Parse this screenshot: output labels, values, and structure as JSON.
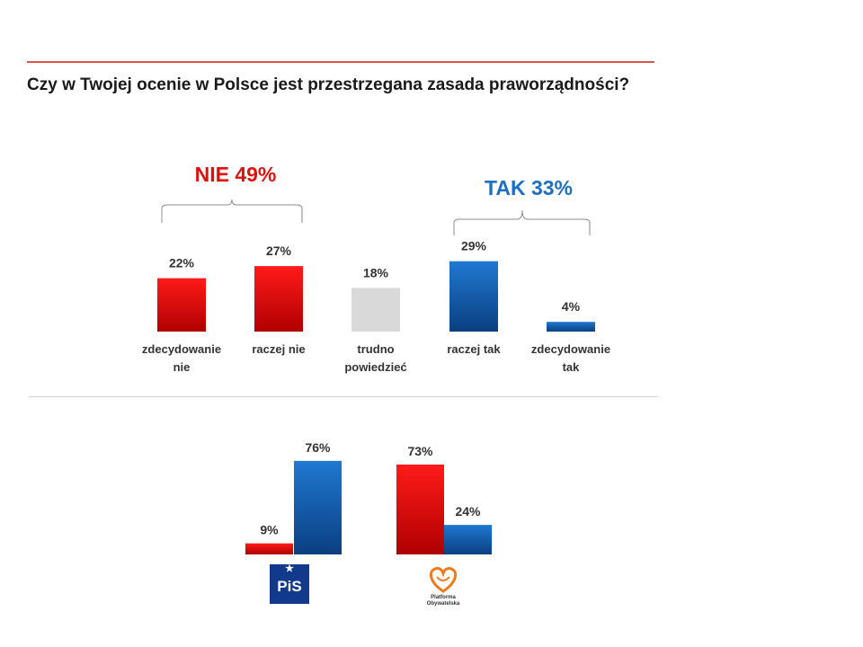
{
  "title": "Czy w Twojej ocenie w Polsce jest przestrzegana zasada praworządności?",
  "colors": {
    "red": "#e10000",
    "blue": "#1464c0",
    "gray": "#d9d9d9",
    "nie_text": "#e01010",
    "tak_text": "#1f6fc0",
    "rule": "#d9534f"
  },
  "chart_data": [
    {
      "type": "bar",
      "categories": [
        "zdecydowanie nie",
        "raczej nie",
        "trudno powiedzieć",
        "raczej tak",
        "zdecydowanie tak"
      ],
      "values": [
        22,
        27,
        18,
        29,
        4
      ],
      "labels": [
        "22%",
        "27%",
        "18%",
        "29%",
        "4%"
      ],
      "groups": [
        {
          "label": "NIE 49%",
          "members": [
            "zdecydowanie nie",
            "raczej nie"
          ]
        },
        {
          "label": "TAK 33%",
          "members": [
            "raczej tak",
            "zdecydowanie tak"
          ]
        }
      ],
      "title": "Czy w Twojej ocenie w Polsce jest przestrzegana zasada praworządności?"
    },
    {
      "type": "bar",
      "categories": [
        "PiS",
        "Platforma Obywatelska"
      ],
      "series": [
        {
          "name": "NIE",
          "values": [
            9,
            73
          ],
          "labels": [
            "9%",
            "73%"
          ]
        },
        {
          "name": "TAK",
          "values": [
            76,
            24
          ],
          "labels": [
            "76%",
            "24%"
          ]
        }
      ]
    }
  ],
  "logos": {
    "pis": "PiS",
    "po_line1": "Platforma",
    "po_line2": "Obywatelska"
  }
}
